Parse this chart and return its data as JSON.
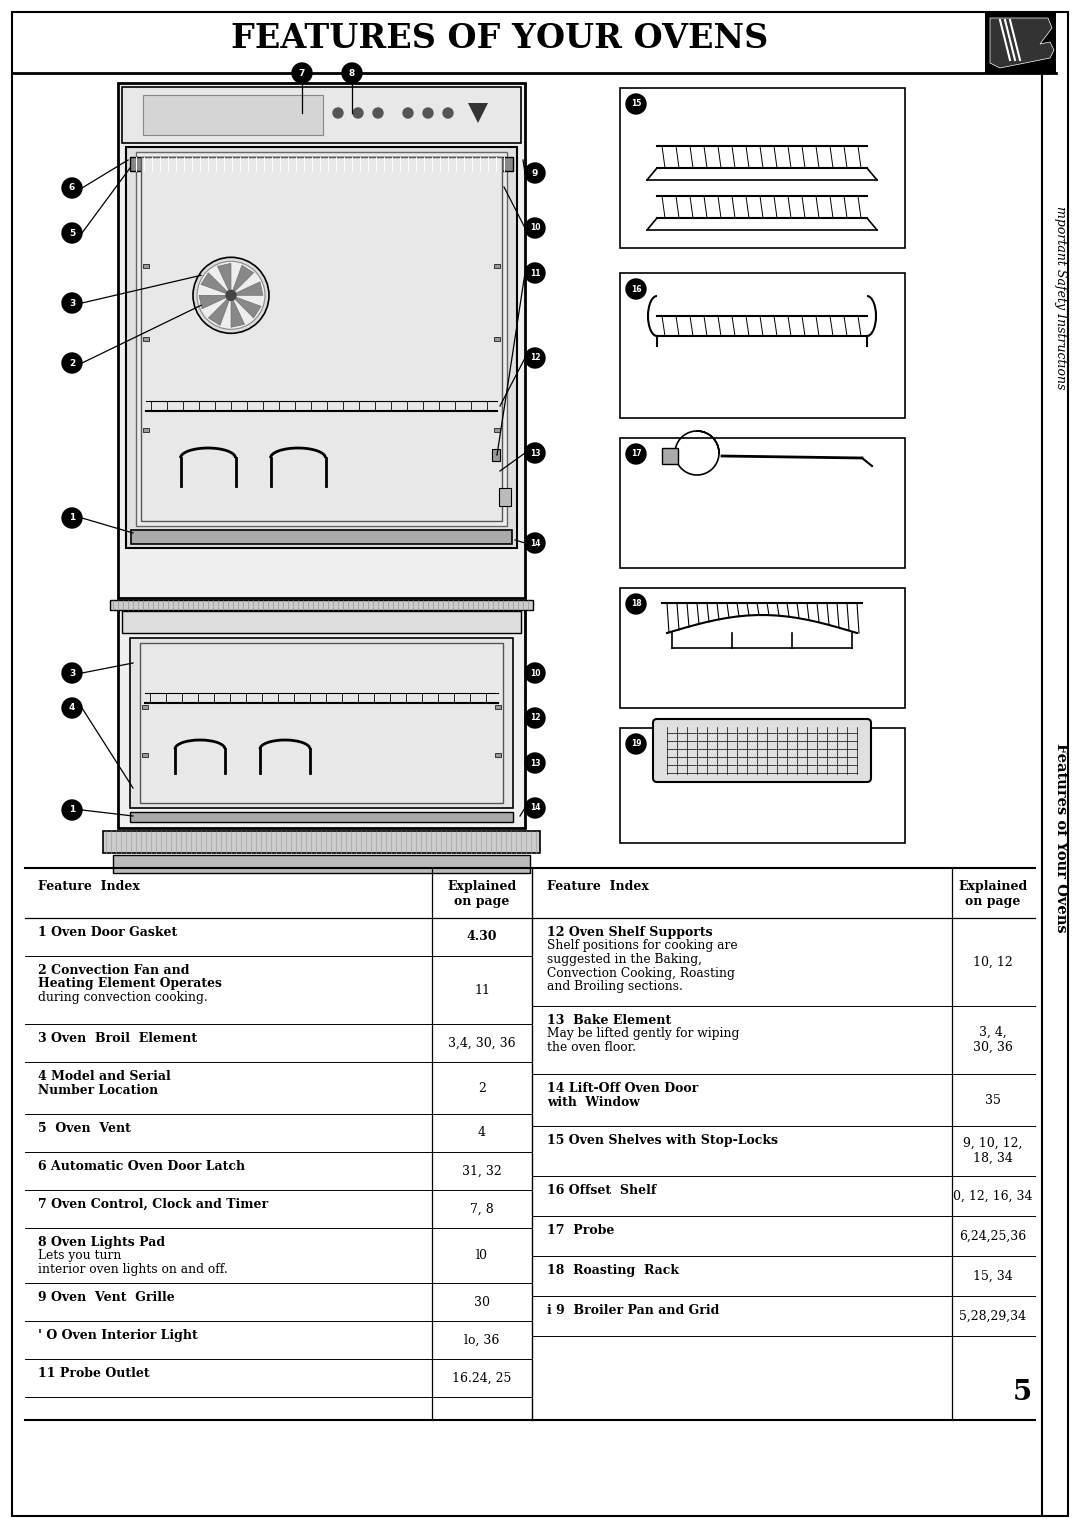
{
  "title": "FEATURES OF YOUR OVENS",
  "bg_color": "#ffffff",
  "page_number": "5",
  "sidebar_bottom": "Features of Your Ovens",
  "sidebar_top": "mportant Safety Instructions",
  "left_rows": [
    {
      "main": "1 Oven Door Gasket",
      "main_bold": true,
      "extra": [],
      "page": "4.30",
      "page_bold": true
    },
    {
      "main": "2 Convection Fan and",
      "main_bold": true,
      "extra": [
        "   Heating Element Operates",
        "   during convection cooking."
      ],
      "extra_bold": [
        true,
        false
      ],
      "page": "11",
      "page_bold": false
    },
    {
      "main": "3 Oven  Broil  Element",
      "main_bold": true,
      "extra": [],
      "page": "3,4, 30, 36",
      "page_bold": false
    },
    {
      "main": "4 Model and Serial",
      "main_bold": true,
      "extra": [
        "   Number Location"
      ],
      "extra_bold": [
        true
      ],
      "page": "2",
      "page_bold": false
    },
    {
      "main": "5  Oven  Vent",
      "main_bold": true,
      "extra": [],
      "page": "4",
      "page_bold": false
    },
    {
      "main": "6 Automatic Oven Door Latch",
      "main_bold": true,
      "extra": [],
      "page": "31, 32",
      "page_bold": false
    },
    {
      "main": "7 Oven Control, Clock and Timer",
      "main_bold": true,
      "extra": [],
      "page": "7, 8",
      "page_bold": false
    },
    {
      "main": "8 Oven Lights Pad",
      "main_bold": true,
      "extra": [
        "  Lets you turn",
        "   interior oven lights on and off."
      ],
      "extra_bold": [
        false,
        false
      ],
      "page": "l0",
      "page_bold": false
    },
    {
      "main": "9 Oven  Vent  Grille",
      "main_bold": true,
      "extra": [],
      "page": "30",
      "page_bold": false
    },
    {
      "main": "' O Oven Interior Light",
      "main_bold": true,
      "extra": [],
      "page": "lo, 36",
      "page_bold": false
    },
    {
      "main": "11 Probe Outlet",
      "main_bold": true,
      "extra": [],
      "page": "16.24, 25",
      "page_bold": false
    }
  ],
  "right_rows": [
    {
      "main": "12 Oven Shelf Supports",
      "main_bold": true,
      "extra": [
        "   Shelf positions for cooking are",
        "   suggested in the Baking,",
        "   Convection Cooking, Roasting",
        "   and Broiling sections."
      ],
      "extra_bold": [
        false,
        false,
        false,
        false
      ],
      "page": "10, 12",
      "page_bold": false
    },
    {
      "main": "13  Bake Element",
      "main_bold": true,
      "extra": [
        "   May be lifted gently for wiping",
        "   the oven floor."
      ],
      "extra_bold": [
        false,
        false
      ],
      "page": "3, 4,\n30, 36",
      "page_bold": false
    },
    {
      "main": "14 Lift-Off Oven Door",
      "main_bold": true,
      "extra": [
        "   with  Window"
      ],
      "extra_bold": [
        true
      ],
      "page": "35",
      "page_bold": false
    },
    {
      "main": "15 Oven Shelves with Stop-Locks",
      "main_bold": true,
      "extra": [],
      "page": "9, 10, 12,\n18, 34",
      "page_bold": false
    },
    {
      "main": "16 Offset  Shelf",
      "main_bold": true,
      "extra": [],
      "page": "0, 12, 16, 34",
      "page_bold": false
    },
    {
      "main": "17  Probe",
      "main_bold": true,
      "extra": [],
      "page": "6,24,25,36",
      "page_bold": false
    },
    {
      "main": "18  Roasting  Rack",
      "main_bold": true,
      "extra": [],
      "page": "15, 34",
      "page_bold": false
    },
    {
      "main": "i 9  Broiler Pan and Grid",
      "main_bold": true,
      "extra": [],
      "page": "5,28,29,34",
      "page_bold": false
    }
  ]
}
